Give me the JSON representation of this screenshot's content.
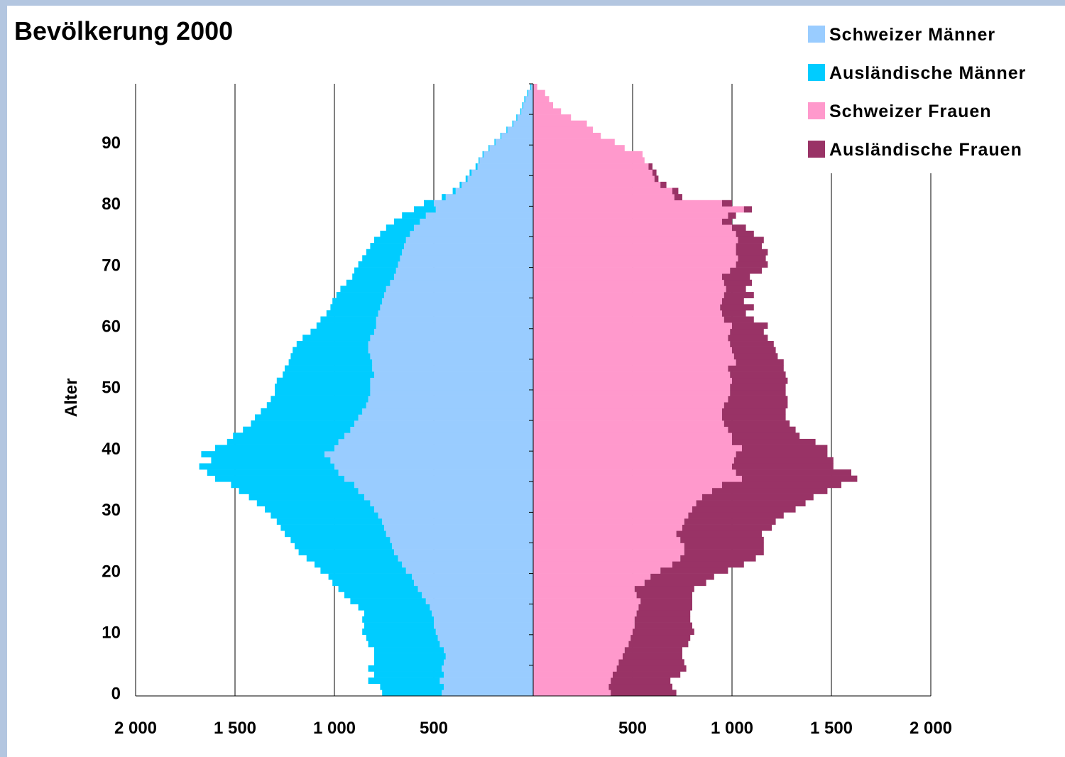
{
  "chart_data": {
    "type": "bar",
    "orientation": "horizontal",
    "subtype": "population-pyramid",
    "title": "Bevölkerung 2000",
    "ylabel": "Alter",
    "xlabel": "",
    "x_tick_labels_left": [
      "2 000",
      "1 500",
      "1 000",
      "500"
    ],
    "x_tick_labels_right": [
      "500",
      "1 000",
      "1 500",
      "2 000"
    ],
    "y_tick_labels": [
      "0",
      "10",
      "20",
      "30",
      "40",
      "50",
      "60",
      "70",
      "80",
      "90"
    ],
    "xlim": [
      -2000,
      2000
    ],
    "ylim": [
      0,
      99
    ],
    "grid": "vertical",
    "legend": "top-right",
    "ages": [
      0,
      1,
      2,
      3,
      4,
      5,
      6,
      7,
      8,
      9,
      10,
      11,
      12,
      13,
      14,
      15,
      16,
      17,
      18,
      19,
      20,
      21,
      22,
      23,
      24,
      25,
      26,
      27,
      28,
      29,
      30,
      31,
      32,
      33,
      34,
      35,
      36,
      37,
      38,
      39,
      40,
      41,
      42,
      43,
      44,
      45,
      46,
      47,
      48,
      49,
      50,
      51,
      52,
      53,
      54,
      55,
      56,
      57,
      58,
      59,
      60,
      61,
      62,
      63,
      64,
      65,
      66,
      67,
      68,
      69,
      70,
      71,
      72,
      73,
      74,
      75,
      76,
      77,
      78,
      79,
      80,
      81,
      82,
      83,
      84,
      85,
      86,
      87,
      88,
      89,
      90,
      91,
      92,
      93,
      94,
      95,
      96,
      97,
      98,
      99
    ],
    "series": [
      {
        "name": "Schweizer Männer",
        "color": "#99ccff",
        "side": "left",
        "values": [
          460,
          450,
          470,
          450,
          460,
          450,
          440,
          450,
          470,
          480,
          490,
          500,
          500,
          510,
          520,
          540,
          560,
          580,
          600,
          610,
          640,
          660,
          680,
          700,
          710,
          720,
          740,
          750,
          760,
          780,
          800,
          820,
          850,
          880,
          900,
          950,
          980,
          1000,
          1020,
          1050,
          1000,
          980,
          950,
          920,
          900,
          880,
          860,
          840,
          830,
          820,
          820,
          820,
          800,
          810,
          810,
          820,
          830,
          830,
          820,
          800,
          790,
          790,
          780,
          770,
          760,
          750,
          740,
          720,
          700,
          690,
          680,
          670,
          660,
          650,
          640,
          620,
          600,
          570,
          540,
          490,
          500,
          440,
          390,
          360,
          330,
          310,
          280,
          270,
          250,
          220,
          190,
          160,
          130,
          100,
          80,
          60,
          50,
          40,
          25,
          10
        ]
      },
      {
        "name": "Ausländische Männer",
        "color": "#00ccff",
        "side": "left",
        "values": [
          300,
          320,
          360,
          350,
          370,
          350,
          360,
          350,
          360,
          360,
          370,
          350,
          360,
          340,
          360,
          380,
          390,
          400,
          410,
          420,
          430,
          440,
          460,
          480,
          490,
          500,
          510,
          520,
          530,
          540,
          550,
          570,
          580,
          600,
          620,
          650,
          660,
          680,
          600,
          620,
          600,
          560,
          560,
          540,
          520,
          520,
          510,
          500,
          490,
          480,
          480,
          470,
          460,
          440,
          420,
          400,
          380,
          360,
          340,
          320,
          300,
          280,
          260,
          250,
          250,
          240,
          230,
          220,
          210,
          210,
          200,
          190,
          180,
          170,
          160,
          150,
          140,
          130,
          120,
          110,
          50,
          20,
          15,
          10,
          10,
          10,
          10,
          5,
          5,
          5,
          5,
          5,
          5,
          5,
          5,
          5,
          5,
          5,
          5,
          5
        ]
      },
      {
        "name": "Schweizer Frauen",
        "color": "#ff99cc",
        "side": "right",
        "values": [
          390,
          380,
          390,
          400,
          420,
          430,
          450,
          460,
          480,
          490,
          500,
          510,
          510,
          520,
          530,
          540,
          520,
          510,
          560,
          590,
          640,
          700,
          740,
          760,
          760,
          740,
          720,
          750,
          760,
          780,
          800,
          820,
          850,
          900,
          950,
          1050,
          1020,
          1000,
          1010,
          1020,
          1050,
          1000,
          1000,
          980,
          960,
          950,
          950,
          960,
          980,
          990,
          990,
          1000,
          990,
          980,
          1020,
          1010,
          1000,
          990,
          980,
          990,
          1000,
          960,
          950,
          940,
          950,
          960,
          970,
          960,
          950,
          990,
          1020,
          1030,
          1020,
          1020,
          1030,
          1020,
          1000,
          950,
          980,
          1060,
          950,
          710,
          700,
          640,
          610,
          600,
          580,
          560,
          550,
          460,
          410,
          340,
          300,
          270,
          190,
          140,
          100,
          80,
          60,
          20
        ]
      },
      {
        "name": "Ausländische Frauen",
        "color": "#993366",
        "side": "right",
        "values": [
          330,
          320,
          300,
          340,
          350,
          330,
          300,
          290,
          300,
          300,
          310,
          290,
          280,
          270,
          270,
          260,
          280,
          300,
          310,
          320,
          340,
          360,
          380,
          400,
          400,
          420,
          430,
          450,
          460,
          480,
          520,
          550,
          560,
          580,
          600,
          580,
          580,
          510,
          500,
          460,
          430,
          420,
          340,
          340,
          330,
          320,
          320,
          320,
          300,
          280,
          280,
          280,
          280,
          280,
          240,
          220,
          220,
          220,
          200,
          170,
          180,
          150,
          120,
          170,
          110,
          150,
          100,
          140,
          140,
          160,
          160,
          140,
          160,
          130,
          130,
          90,
          70,
          50,
          40,
          40,
          50,
          40,
          30,
          30,
          20,
          20,
          20,
          0,
          0,
          0,
          0,
          0,
          0,
          0,
          0,
          0,
          0,
          0,
          0,
          0
        ]
      }
    ]
  }
}
